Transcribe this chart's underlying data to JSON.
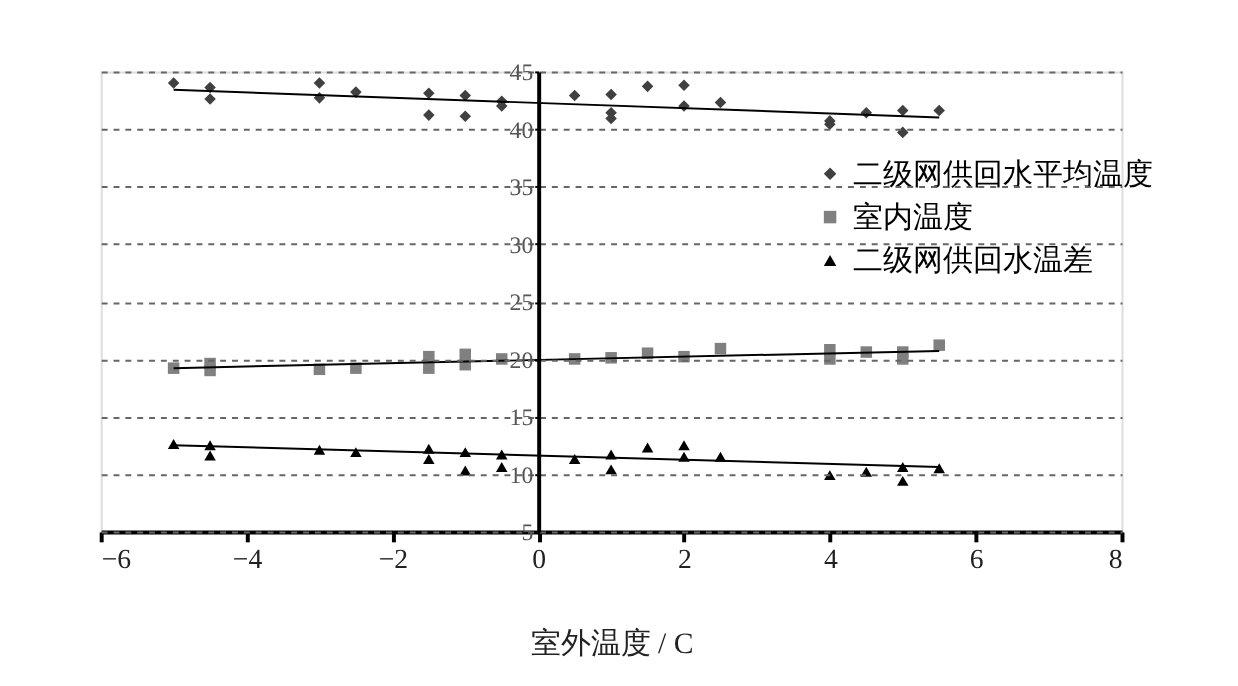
{
  "chart_data": {
    "type": "scatter",
    "xlabel": "室外温度 / C",
    "xlim": [
      -6,
      8
    ],
    "xticks": [
      -6,
      -4,
      -2,
      0,
      2,
      4,
      6,
      8
    ],
    "ylim": [
      5,
      45
    ],
    "yticks": [
      5,
      10,
      15,
      20,
      25,
      30,
      35,
      40,
      45
    ],
    "grid": "y",
    "legend": "right",
    "series": [
      {
        "name": "二级网供回水平均温度",
        "color": "#404040",
        "marker": "diamond",
        "x": [
          -5,
          -4.5,
          -4.5,
          -3,
          -3,
          -2.5,
          -1.5,
          -1.5,
          -1,
          -1,
          -0.5,
          -0.5,
          0.5,
          1,
          1,
          1,
          1.5,
          2,
          2,
          2.5,
          4,
          4,
          4.5,
          5,
          5,
          5.5
        ],
        "values": [
          44.0,
          43.6,
          42.6,
          44.0,
          42.7,
          43.2,
          43.1,
          41.2,
          42.9,
          41.1,
          42.4,
          42.0,
          42.9,
          43.0,
          41.4,
          40.9,
          43.7,
          43.8,
          42.0,
          42.3,
          40.7,
          40.4,
          41.4,
          41.6,
          39.7,
          41.6
        ]
      },
      {
        "name": "室内温度",
        "color": "#808080",
        "marker": "square",
        "x": [
          -5,
          -4.5,
          -4.5,
          -3,
          -2.5,
          -1.5,
          -1.5,
          -1,
          -1,
          -0.5,
          0.5,
          1,
          1.5,
          2,
          2.5,
          4,
          4,
          4.5,
          5,
          5,
          5.5
        ],
        "values": [
          19.2,
          19.6,
          19.0,
          19.1,
          19.2,
          20.2,
          19.2,
          20.4,
          19.5,
          20.0,
          20.0,
          20.1,
          20.5,
          20.2,
          20.9,
          20.8,
          20.0,
          20.6,
          20.6,
          20.0,
          21.2
        ]
      },
      {
        "name": "二级网供回水温差",
        "color": "#000000",
        "marker": "triangle",
        "x": [
          -5,
          -4.5,
          -4.5,
          -3,
          -2.5,
          -1.5,
          -1.5,
          -1,
          -1,
          -0.5,
          -0.5,
          0.5,
          1,
          1,
          1.5,
          2,
          2,
          2.5,
          4,
          4.5,
          5,
          5,
          5.5
        ],
        "values": [
          12.6,
          12.5,
          11.6,
          12.1,
          11.9,
          12.2,
          11.3,
          11.9,
          10.3,
          11.7,
          10.6,
          11.3,
          11.7,
          10.4,
          12.3,
          12.5,
          11.5,
          11.5,
          9.9,
          10.2,
          10.6,
          9.4,
          10.5
        ]
      },
      {
        "type": "line",
        "color": "#000000",
        "x": [
          -5,
          5.5
        ],
        "values": [
          43.4,
          41.0
        ]
      },
      {
        "type": "line",
        "color": "#000000",
        "x": [
          -5,
          5.5
        ],
        "values": [
          19.2,
          20.7
        ]
      },
      {
        "type": "line",
        "color": "#000000",
        "x": [
          -5,
          5.5
        ],
        "values": [
          12.5,
          10.6
        ]
      }
    ]
  }
}
